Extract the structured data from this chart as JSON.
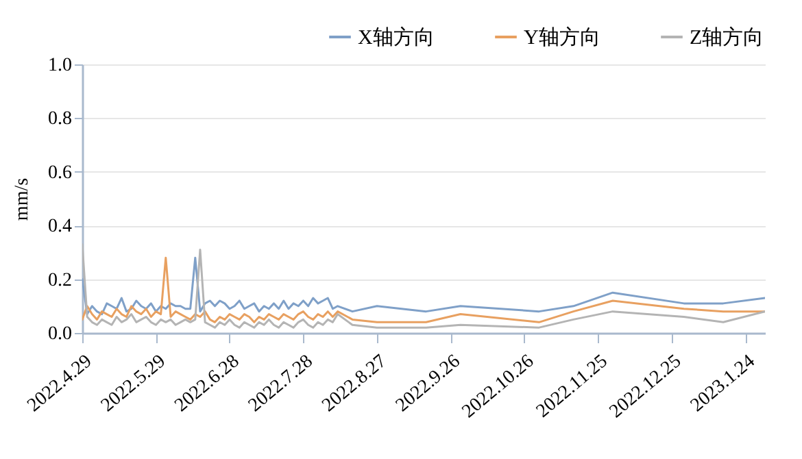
{
  "chart_data": {
    "type": "line",
    "ylabel": "mm/s",
    "legend": "top right",
    "grid": "y",
    "line_style": "solid",
    "x": [
      "2022-04-29",
      "2022-05-01",
      "2022-05-03",
      "2022-05-05",
      "2022-05-07",
      "2022-05-09",
      "2022-05-11",
      "2022-05-13",
      "2022-05-15",
      "2022-05-17",
      "2022-05-19",
      "2022-05-21",
      "2022-05-23",
      "2022-05-25",
      "2022-05-27",
      "2022-05-29",
      "2022-05-31",
      "2022-06-02",
      "2022-06-04",
      "2022-06-06",
      "2022-06-08",
      "2022-06-10",
      "2022-06-12",
      "2022-06-14",
      "2022-06-16",
      "2022-06-18",
      "2022-06-20",
      "2022-06-22",
      "2022-06-24",
      "2022-06-26",
      "2022-06-28",
      "2022-06-30",
      "2022-07-02",
      "2022-07-04",
      "2022-07-06",
      "2022-07-08",
      "2022-07-10",
      "2022-07-12",
      "2022-07-14",
      "2022-07-16",
      "2022-07-18",
      "2022-07-20",
      "2022-07-22",
      "2022-07-24",
      "2022-07-26",
      "2022-07-28",
      "2022-07-30",
      "2022-08-01",
      "2022-08-03",
      "2022-08-05",
      "2022-08-07",
      "2022-08-09",
      "2022-08-11",
      "2022-08-17",
      "2022-08-27",
      "2022-09-16",
      "2022-09-30",
      "2022-11-01",
      "2022-11-15",
      "2022-12-01",
      "2022-12-30",
      "2023-01-15",
      "2023-02-01"
    ],
    "series": [
      {
        "name": "X轴方向",
        "color": "#7fa0c8",
        "values": [
          0.2,
          0.07,
          0.1,
          0.08,
          0.07,
          0.11,
          0.1,
          0.09,
          0.13,
          0.08,
          0.09,
          0.12,
          0.1,
          0.09,
          0.11,
          0.08,
          0.1,
          0.09,
          0.11,
          0.1,
          0.1,
          0.09,
          0.09,
          0.28,
          0.08,
          0.11,
          0.12,
          0.1,
          0.12,
          0.11,
          0.09,
          0.1,
          0.12,
          0.09,
          0.1,
          0.11,
          0.08,
          0.1,
          0.09,
          0.11,
          0.09,
          0.12,
          0.09,
          0.11,
          0.1,
          0.12,
          0.1,
          0.13,
          0.11,
          0.12,
          0.13,
          0.09,
          0.1,
          0.08,
          0.1,
          0.08,
          0.1,
          0.08,
          0.1,
          0.15,
          0.11,
          0.11,
          0.13
        ]
      },
      {
        "name": "Y轴方向",
        "color": "#e8a060",
        "values": [
          0.05,
          0.1,
          0.07,
          0.05,
          0.08,
          0.07,
          0.06,
          0.09,
          0.07,
          0.06,
          0.1,
          0.08,
          0.07,
          0.09,
          0.06,
          0.08,
          0.07,
          0.28,
          0.06,
          0.08,
          0.07,
          0.06,
          0.05,
          0.07,
          0.06,
          0.08,
          0.05,
          0.04,
          0.06,
          0.05,
          0.07,
          0.06,
          0.05,
          0.07,
          0.06,
          0.04,
          0.06,
          0.05,
          0.07,
          0.06,
          0.05,
          0.07,
          0.06,
          0.05,
          0.07,
          0.08,
          0.06,
          0.05,
          0.07,
          0.06,
          0.08,
          0.06,
          0.08,
          0.05,
          0.04,
          0.04,
          0.07,
          0.04,
          0.08,
          0.12,
          0.09,
          0.08,
          0.08
        ]
      },
      {
        "name": "Z轴方向",
        "color": "#b4b4b4",
        "values": [
          0.33,
          0.06,
          0.04,
          0.03,
          0.05,
          0.04,
          0.03,
          0.06,
          0.04,
          0.05,
          0.07,
          0.04,
          0.05,
          0.06,
          0.04,
          0.03,
          0.05,
          0.04,
          0.05,
          0.03,
          0.04,
          0.05,
          0.04,
          0.05,
          0.31,
          0.04,
          0.03,
          0.02,
          0.04,
          0.03,
          0.05,
          0.03,
          0.02,
          0.04,
          0.03,
          0.02,
          0.04,
          0.03,
          0.05,
          0.03,
          0.02,
          0.04,
          0.03,
          0.02,
          0.04,
          0.05,
          0.03,
          0.02,
          0.04,
          0.03,
          0.05,
          0.04,
          0.07,
          0.03,
          0.02,
          0.02,
          0.03,
          0.02,
          0.05,
          0.08,
          0.06,
          0.04,
          0.08
        ]
      }
    ],
    "xlim": [
      "2022-04-29",
      "2023-02-01"
    ],
    "xticks": [
      {
        "value": "2022-04-29",
        "label": "2022.4.29"
      },
      {
        "value": "2022-05-29",
        "label": "2022.5.29"
      },
      {
        "value": "2022-06-28",
        "label": "2022.6.28"
      },
      {
        "value": "2022-07-28",
        "label": "2022.7.28"
      },
      {
        "value": "2022-08-27",
        "label": "2022.8.27"
      },
      {
        "value": "2022-09-26",
        "label": "2022.9.26"
      },
      {
        "value": "2022-10-26",
        "label": "2022.10.26"
      },
      {
        "value": "2022-11-25",
        "label": "2022.11.25"
      },
      {
        "value": "2022-12-25",
        "label": "2022.12.25"
      },
      {
        "value": "2023-01-24",
        "label": "2023.1.24"
      }
    ],
    "ylim": [
      0,
      1.0
    ],
    "yticks": [
      {
        "value": 0,
        "label": "0.0"
      },
      {
        "value": 0.2,
        "label": "0.2"
      },
      {
        "value": 0.4,
        "label": "0.4"
      },
      {
        "value": 0.6,
        "label": "0.6"
      },
      {
        "value": 0.8,
        "label": "0.8"
      },
      {
        "value": 1.0,
        "label": "1.0"
      }
    ]
  }
}
